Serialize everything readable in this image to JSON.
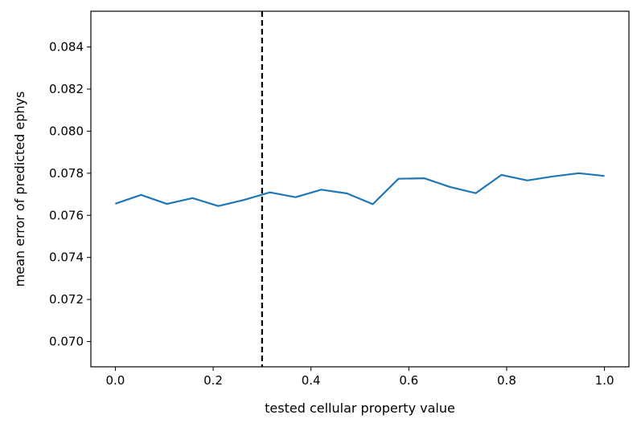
{
  "chart_data": {
    "type": "line",
    "title": "",
    "xlabel": "tested cellular property value",
    "ylabel": "mean error of predicted ephys",
    "xlim": [
      -0.05,
      1.05
    ],
    "ylim": [
      0.0688,
      0.0857
    ],
    "xticks": [
      0.0,
      0.2,
      0.4,
      0.6,
      0.8,
      1.0
    ],
    "xtick_labels": [
      "0.0",
      "0.2",
      "0.4",
      "0.6",
      "0.8",
      "1.0"
    ],
    "yticks": [
      0.07,
      0.072,
      0.074,
      0.076,
      0.078,
      0.08,
      0.082,
      0.084
    ],
    "ytick_labels": [
      "0.070",
      "0.072",
      "0.074",
      "0.076",
      "0.078",
      "0.080",
      "0.082",
      "0.084"
    ],
    "grid": false,
    "series": [
      {
        "color": "#1f77b4",
        "x": [
          0.0,
          0.0526,
          0.1053,
          0.1579,
          0.2105,
          0.2632,
          0.3158,
          0.3684,
          0.4211,
          0.4737,
          0.5263,
          0.5789,
          0.6316,
          0.6842,
          0.7368,
          0.7895,
          0.8421,
          0.8947,
          0.9474,
          1.0
        ],
        "y": [
          0.07655,
          0.07697,
          0.07654,
          0.07682,
          0.07644,
          0.07673,
          0.07709,
          0.07686,
          0.07722,
          0.07704,
          0.07653,
          0.07774,
          0.07776,
          0.07735,
          0.07705,
          0.07792,
          0.07766,
          0.07785,
          0.078,
          0.07787
        ]
      }
    ],
    "vline": {
      "x": 0.3,
      "style": "dashed",
      "color": "#000000"
    }
  }
}
